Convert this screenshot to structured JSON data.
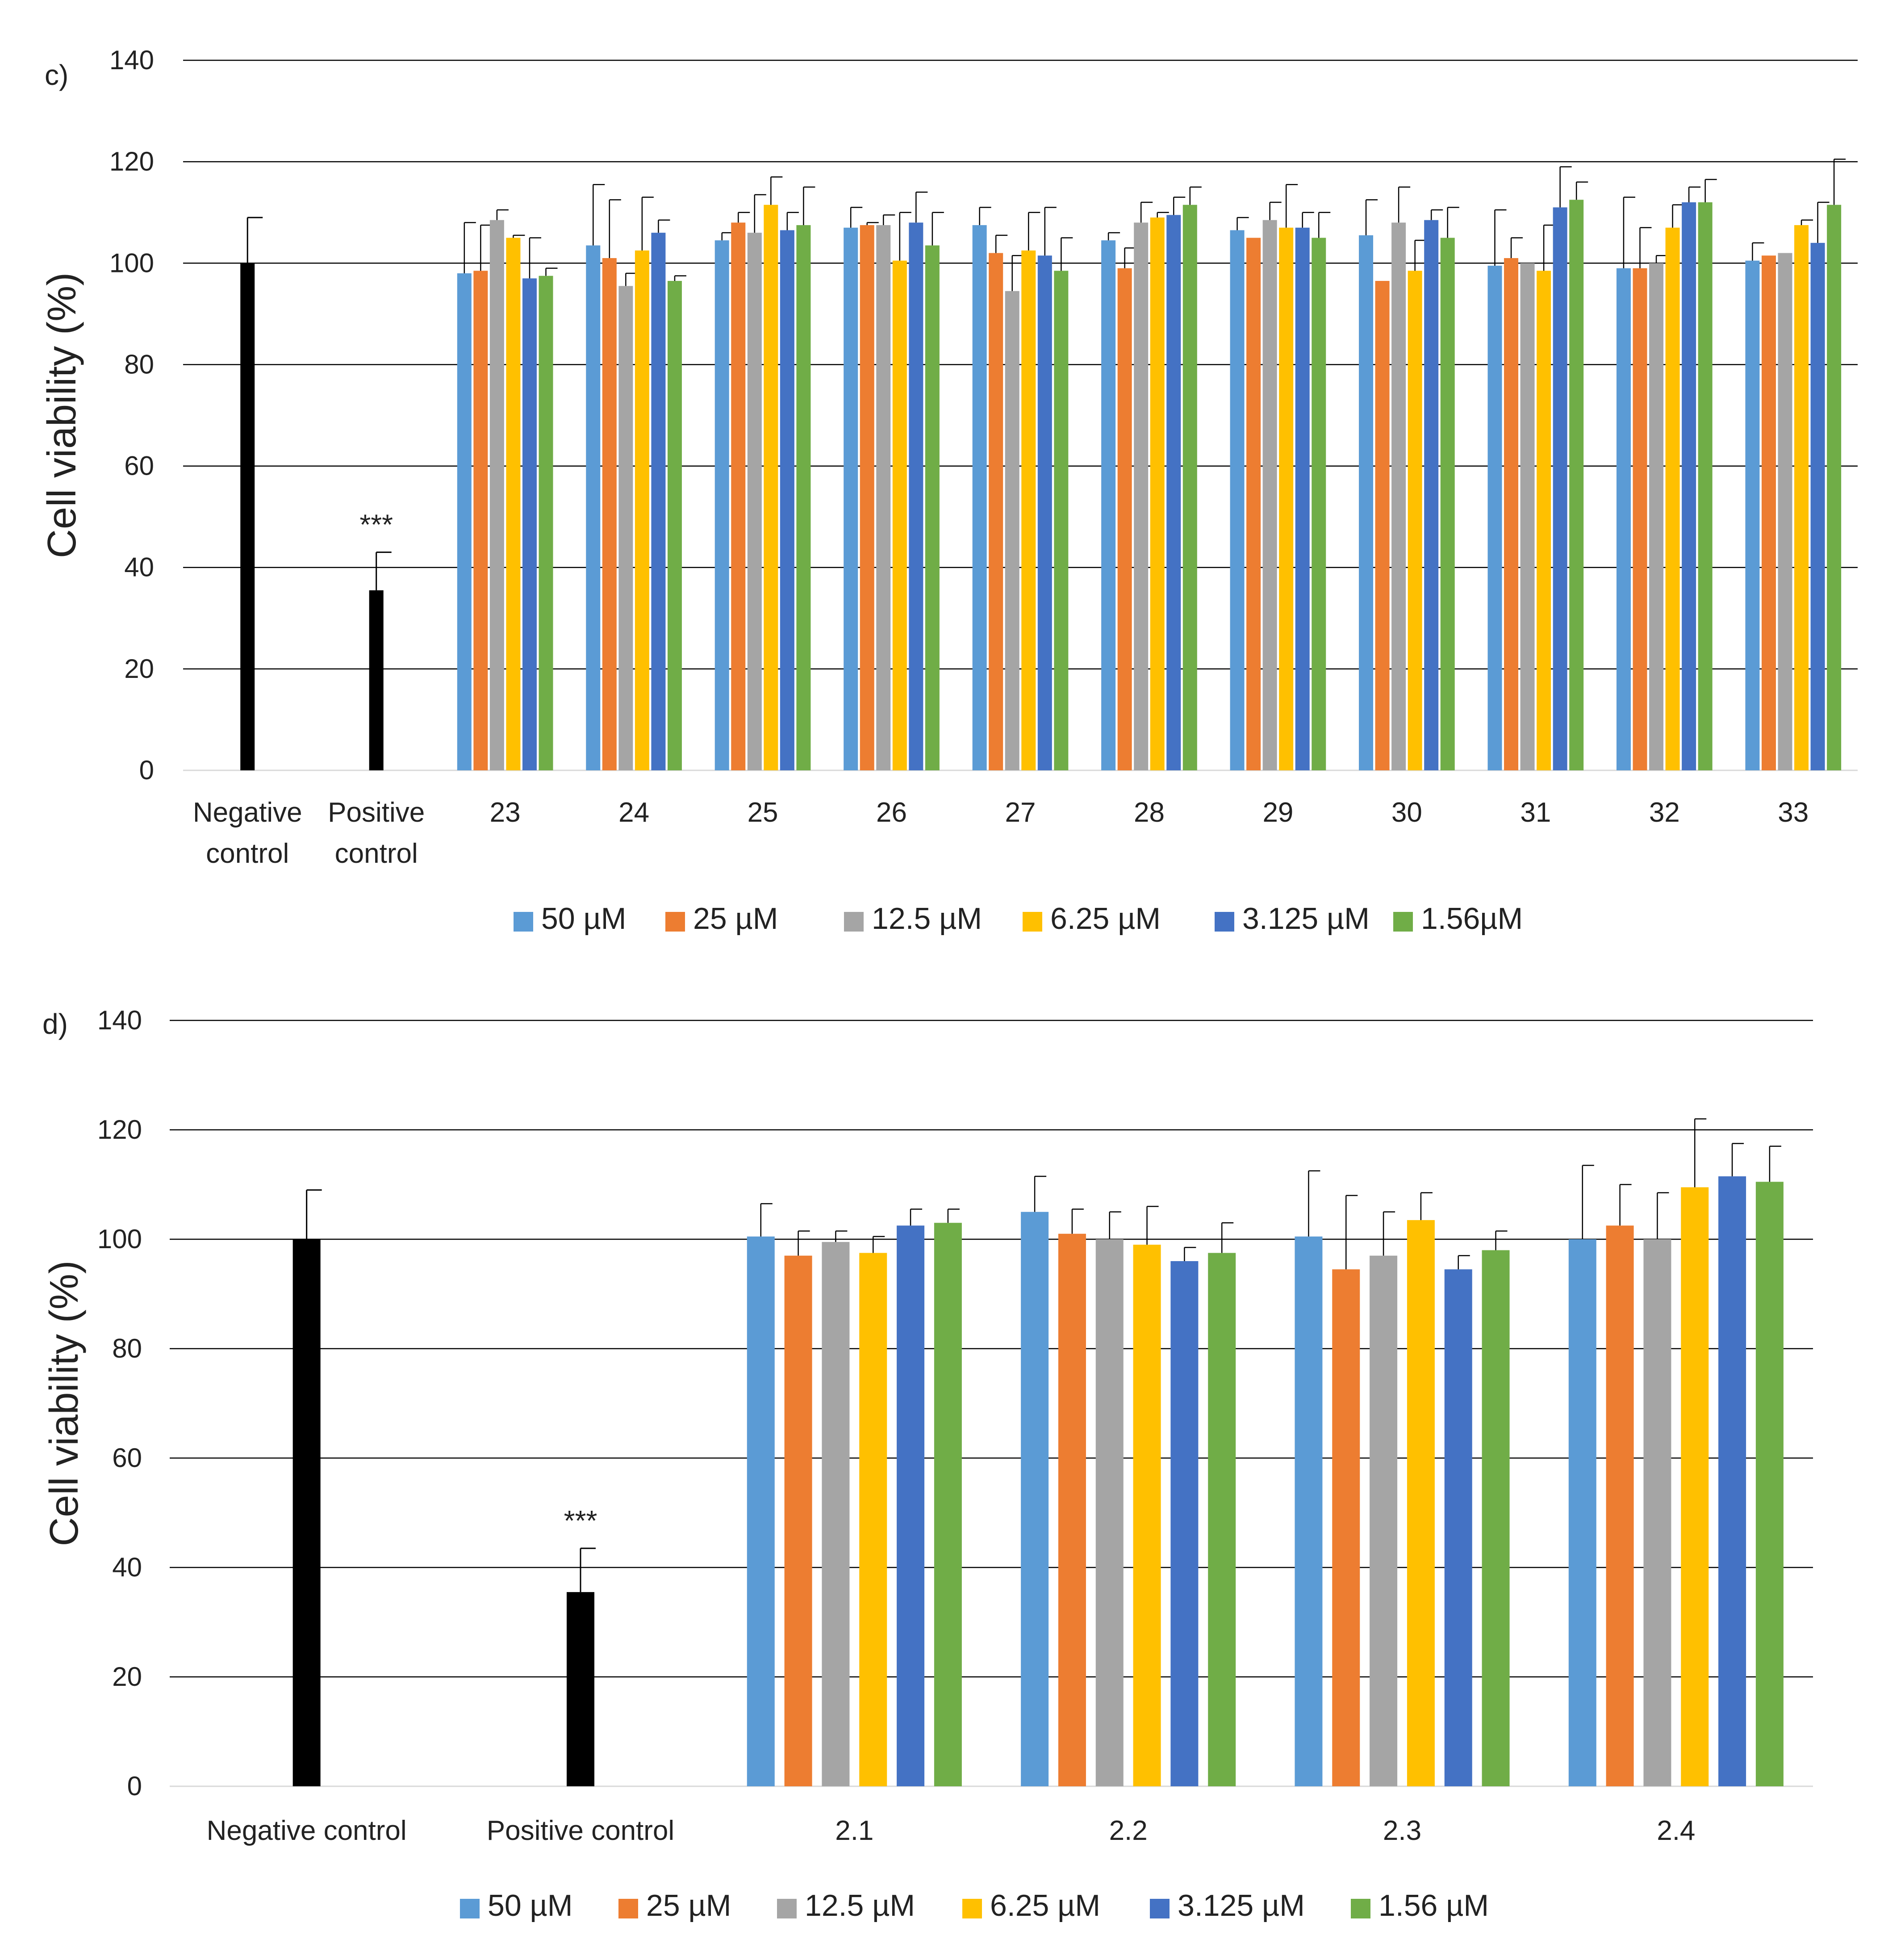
{
  "colors": {
    "control": "#000000",
    "grid": "#000000",
    "errorbar": "#000000"
  },
  "chart_data": [
    {
      "type": "bar",
      "panel_label": "c)",
      "ylabel": "Cell viability (%)",
      "ylim": [
        0,
        140
      ],
      "yticks": [
        0,
        20,
        40,
        60,
        80,
        100,
        120,
        140
      ],
      "grid": true,
      "legend_position": "bottom",
      "control_categories": [
        {
          "label_lines": [
            "Negative",
            "control"
          ],
          "value": 100,
          "err": 9,
          "sig": ""
        },
        {
          "label_lines": [
            "Positive",
            "control"
          ],
          "value": 35.5,
          "err": 7.5,
          "sig": "***"
        }
      ],
      "categories": [
        "23",
        "24",
        "25",
        "26",
        "27",
        "28",
        "29",
        "30",
        "31",
        "32",
        "33"
      ],
      "series": [
        {
          "name": "50 µM",
          "color": "#5b9bd5",
          "values": [
            98,
            103.5,
            104.5,
            107,
            107.5,
            104.5,
            106.5,
            105.5,
            99.5,
            99,
            100.5
          ],
          "errors": [
            10,
            12,
            1.5,
            4,
            3.5,
            1.5,
            2.5,
            7,
            11,
            14,
            3.5
          ]
        },
        {
          "name": "25 µM",
          "color": "#ed7d31",
          "values": [
            98.5,
            101,
            108,
            107.5,
            102,
            99,
            105,
            96.5,
            101,
            99,
            101.5
          ],
          "errors": [
            9,
            11.5,
            2,
            0.5,
            3.5,
            4,
            0,
            0,
            4,
            8,
            0
          ]
        },
        {
          "name": "12.5 µM",
          "color": "#a5a5a5",
          "values": [
            108.5,
            95.5,
            106,
            107.5,
            94.5,
            108,
            108.5,
            108,
            100,
            100,
            102
          ],
          "errors": [
            2,
            2.5,
            7.5,
            2,
            7,
            4,
            3.5,
            7,
            0,
            1.5,
            0
          ]
        },
        {
          "name": "6.25 µM",
          "color": "#ffc000",
          "values": [
            105,
            102.5,
            111.5,
            100.5,
            102.5,
            109,
            107,
            98.5,
            98.5,
            107,
            107.5
          ],
          "errors": [
            0.5,
            10.5,
            5.5,
            9.5,
            7.5,
            1,
            8.5,
            6,
            9,
            4.5,
            1
          ]
        },
        {
          "name": "3.125 µM",
          "color": "#4472c4",
          "values": [
            97,
            106,
            106.5,
            108,
            101.5,
            109.5,
            107,
            108.5,
            111,
            112,
            104
          ],
          "errors": [
            8,
            2.5,
            3.5,
            6,
            9.5,
            3.5,
            3,
            2,
            8,
            3,
            8
          ]
        },
        {
          "name": "1.56µM",
          "color": "#70ad47",
          "values": [
            97.5,
            96.5,
            107.5,
            103.5,
            98.5,
            111.5,
            105,
            105,
            112.5,
            112,
            111.5
          ],
          "errors": [
            1.5,
            1,
            7.5,
            6.5,
            6.5,
            3.5,
            5,
            6,
            3.5,
            4.5,
            9
          ]
        }
      ]
    },
    {
      "type": "bar",
      "panel_label": "d)",
      "ylabel": "Cell viability (%)",
      "ylim": [
        0,
        140
      ],
      "yticks": [
        0,
        20,
        40,
        60,
        80,
        100,
        120,
        140
      ],
      "grid": true,
      "legend_position": "bottom",
      "control_categories": [
        {
          "label_lines": [
            "Negative control"
          ],
          "value": 100,
          "err": 9,
          "sig": ""
        },
        {
          "label_lines": [
            "Positive control"
          ],
          "value": 35.5,
          "err": 8,
          "sig": "***"
        }
      ],
      "categories": [
        "2.1",
        "2.2",
        "2.3",
        "2.4"
      ],
      "series": [
        {
          "name": "50 µM",
          "color": "#5b9bd5",
          "values": [
            100.5,
            105,
            100.5,
            100
          ],
          "errors": [
            6,
            6.5,
            12,
            13.5
          ]
        },
        {
          "name": "25 µM",
          "color": "#ed7d31",
          "values": [
            97,
            101,
            94.5,
            102.5
          ],
          "errors": [
            4.5,
            4.5,
            13.5,
            7.5
          ]
        },
        {
          "name": "12.5 µM",
          "color": "#a5a5a5",
          "values": [
            99.5,
            100,
            97,
            100
          ],
          "errors": [
            2,
            5,
            8,
            8.5
          ]
        },
        {
          "name": "6.25 µM",
          "color": "#ffc000",
          "values": [
            97.5,
            99,
            103.5,
            109.5
          ],
          "errors": [
            3,
            7,
            5,
            12.5
          ]
        },
        {
          "name": "3.125 µM",
          "color": "#4472c4",
          "values": [
            102.5,
            96,
            94.5,
            111.5
          ],
          "errors": [
            3,
            2.5,
            2.5,
            6
          ]
        },
        {
          "name": "1.56 µM",
          "color": "#70ad47",
          "values": [
            103,
            97.5,
            98,
            110.5
          ],
          "errors": [
            2.5,
            5.5,
            3.5,
            6.5
          ]
        }
      ]
    }
  ]
}
